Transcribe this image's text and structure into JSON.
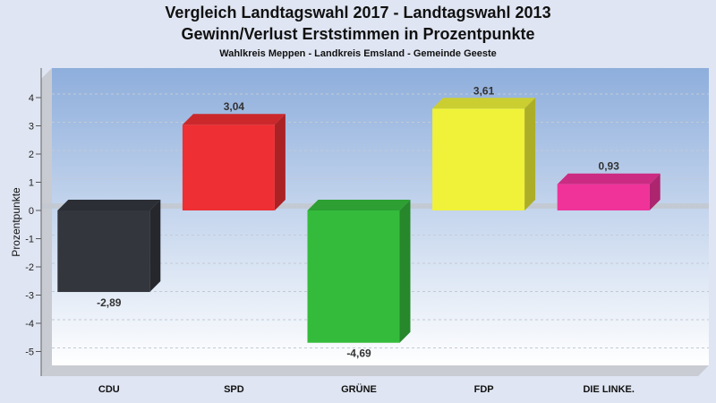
{
  "chart_data": {
    "type": "bar",
    "title": "Vergleich Landtagswahl 2017 - Landtagswahl 2013",
    "subtitle": "Gewinn/Verlust Erststimmen in Prozentpunkte",
    "subtitle2": "Wahlkreis Meppen - Landkreis Emsland - Gemeinde Geeste",
    "xlabel": "",
    "ylabel": "Prozentpunkte",
    "ylim": [
      -5.5,
      5.0
    ],
    "yticks": [
      4,
      3,
      2,
      1,
      0,
      -1,
      -2,
      -3,
      -4,
      -5
    ],
    "grid": true,
    "categories": [
      "CDU",
      "SPD",
      "GRÜNE",
      "FDP",
      "DIE LINKE."
    ],
    "values": [
      -2.89,
      3.04,
      -4.69,
      3.61,
      0.93
    ],
    "value_labels": [
      "-2,89",
      "3,04",
      "-4,69",
      "3,61",
      "0,93"
    ],
    "colors": [
      "#33363d",
      "#ee2f33",
      "#35bb3c",
      "#eff238",
      "#ef3399"
    ]
  }
}
